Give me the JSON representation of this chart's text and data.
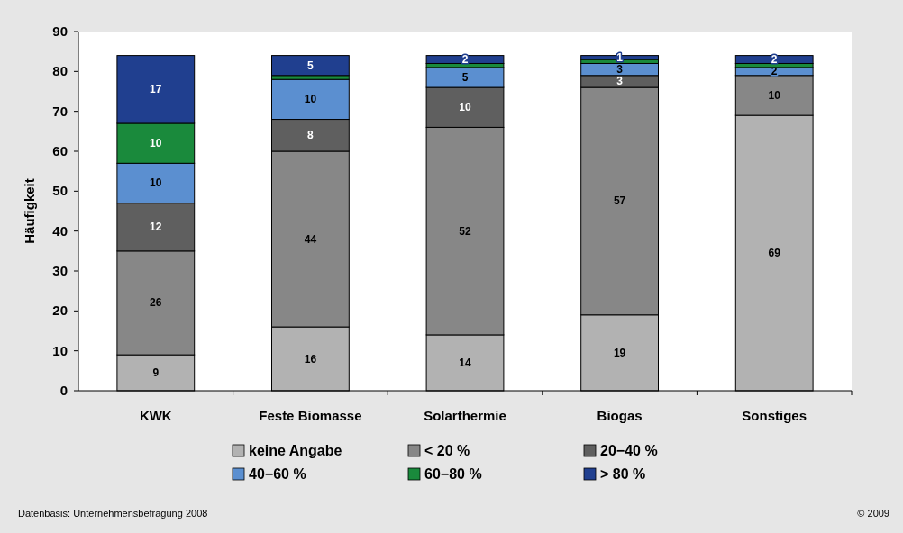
{
  "chart_data": {
    "type": "bar",
    "stacked": true,
    "ylabel": "Häufigkeit",
    "categories": [
      "KWK",
      "Feste Biomasse",
      "Solarthermie",
      "Biogas",
      "Sonstiges"
    ],
    "series": [
      {
        "name": "keine Angabe",
        "color": "#b2b2b2",
        "values": [
          9,
          16,
          14,
          19,
          69
        ],
        "value_labels": [
          "9",
          "16",
          "14",
          "19",
          "69"
        ]
      },
      {
        "name": "< 20 %",
        "color": "#878787",
        "values": [
          26,
          44,
          52,
          57,
          10
        ],
        "value_labels": [
          "26",
          "44",
          "52",
          "57",
          "10"
        ]
      },
      {
        "name": "20−40 %",
        "color": "#5f5f5f",
        "values": [
          12,
          8,
          10,
          3,
          0
        ],
        "value_labels": [
          "12",
          "8",
          "10",
          "3",
          null
        ]
      },
      {
        "name": "40−60 %",
        "color": "#5b8fd0",
        "values": [
          10,
          10,
          5,
          3,
          2
        ],
        "value_labels": [
          "10",
          "10",
          "5",
          "3",
          "2"
        ]
      },
      {
        "name": "60−80 %",
        "color": "#1a8a3c",
        "values": [
          10,
          1,
          1,
          1,
          1
        ],
        "value_labels": [
          "10",
          null,
          null,
          null,
          null
        ]
      },
      {
        "name": "> 80 %",
        "color": "#203f8f",
        "values": [
          17,
          5,
          2,
          1,
          2
        ],
        "value_labels": [
          "17",
          "5",
          "2",
          "1",
          "2"
        ]
      }
    ],
    "ylim": [
      0,
      90
    ],
    "yticks": [
      0,
      10,
      20,
      30,
      40,
      50,
      60,
      70,
      80,
      90
    ],
    "grid": false,
    "legend": "bottom",
    "annotations": [
      "Datenbasis: Unternehmensbefragung 2008",
      "© 2009"
    ]
  }
}
